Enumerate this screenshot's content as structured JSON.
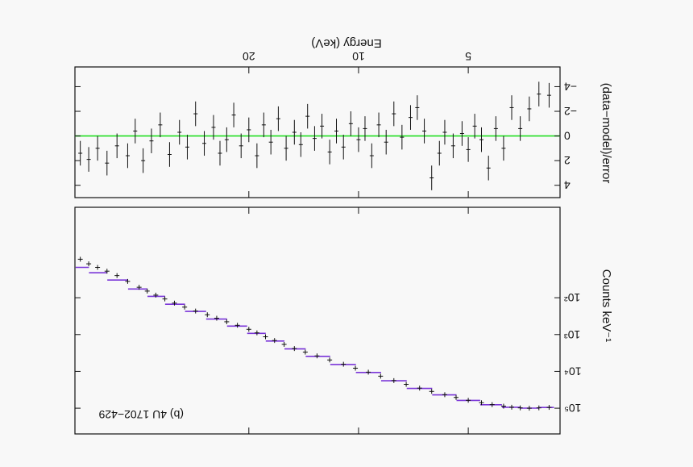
{
  "figure": {
    "orientation": "rotated 180 degrees (printed upside down)",
    "annotation": "(b) 4U 1702−429",
    "colors": {
      "data": "#111111",
      "model": "#7a35d8",
      "zero_line": "#22dd22",
      "background": "#f8f8f8"
    }
  },
  "chart_data": [
    {
      "type": "scatter",
      "panel": "spectrum",
      "xlabel": "Energy (keV)",
      "ylabel": "Counts keV⁻¹",
      "x_scale": "log",
      "y_scale": "log",
      "xlim": [
        2.8,
        60
      ],
      "ylim": [
        0.35,
        500000
      ],
      "x_ticks": [
        5,
        10,
        20
      ],
      "y_ticks": [
        {
          "v": 100,
          "label": "10²"
        },
        {
          "v": 1000,
          "label": "10³"
        },
        {
          "v": 10000,
          "label": "10⁴"
        },
        {
          "v": 100000,
          "label": "10⁵"
        }
      ],
      "legend": "none",
      "series": [
        {
          "role": "data",
          "points": [
            [
              3.0,
              95000
            ],
            [
              3.2,
              98000
            ],
            [
              3.4,
              100000
            ],
            [
              3.6,
              98000
            ],
            [
              3.8,
              94000
            ],
            [
              4.0,
              88000
            ],
            [
              4.3,
              80000
            ],
            [
              4.6,
              71000
            ],
            [
              5.0,
              61000
            ],
            [
              5.4,
              51000
            ],
            [
              5.8,
              43000
            ],
            [
              6.3,
              35000
            ],
            [
              6.8,
              28500
            ],
            [
              7.4,
              22500
            ],
            [
              8.0,
              17800
            ],
            [
              8.7,
              13500
            ],
            [
              9.4,
              10500
            ],
            [
              10.2,
              8200
            ],
            [
              11.0,
              6400
            ],
            [
              12.0,
              4900
            ],
            [
              13.0,
              3800
            ],
            [
              14.0,
              3000
            ],
            [
              15.0,
              2400
            ],
            [
              16.0,
              1850
            ],
            [
              17.0,
              1450
            ],
            [
              18.0,
              1150
            ],
            [
              19.0,
              900
            ],
            [
              20.0,
              720
            ],
            [
              21.5,
              560
            ],
            [
              23.0,
              450
            ],
            [
              24.5,
              360
            ],
            [
              26.0,
              290
            ],
            [
              28.0,
              230
            ],
            [
              30.0,
              180
            ],
            [
              32.0,
              140
            ],
            [
              34.0,
              108
            ],
            [
              36.0,
              85
            ],
            [
              38.0,
              66
            ],
            [
              40.0,
              52
            ],
            [
              43.0,
              36
            ],
            [
              46.0,
              25
            ],
            [
              49.0,
              19
            ],
            [
              52.0,
              15
            ],
            [
              55.0,
              12
            ],
            [
              58.0,
              9
            ]
          ]
        },
        {
          "role": "model",
          "points": [
            [
              3.0,
              95500
            ],
            [
              3.4,
              99500
            ],
            [
              3.8,
              94500
            ],
            [
              4.3,
              80500
            ],
            [
              5.0,
              61500
            ],
            [
              5.8,
              43500
            ],
            [
              6.8,
              29000
            ],
            [
              8.0,
              18000
            ],
            [
              9.4,
              10700
            ],
            [
              11.0,
              6500
            ],
            [
              13.0,
              3900
            ],
            [
              15.0,
              2450
            ],
            [
              17.0,
              1500
            ],
            [
              19.0,
              930
            ],
            [
              21.5,
              590
            ],
            [
              24.5,
              380
            ],
            [
              28.0,
              235
            ],
            [
              32.0,
              150
            ],
            [
              36.0,
              92
            ],
            [
              40.0,
              58
            ],
            [
              46.0,
              33
            ],
            [
              52.0,
              21
            ],
            [
              58.0,
              15
            ]
          ]
        }
      ]
    },
    {
      "type": "scatter",
      "panel": "residuals",
      "xlabel": "Energy (keV)",
      "ylabel": "(data−model)/error",
      "x_scale": "log",
      "xlim": [
        2.8,
        60
      ],
      "ylim": [
        -5.6,
        5.0
      ],
      "y_ticks": [
        {
          "v": 4,
          "label": "4"
        },
        {
          "v": 2,
          "label": "2"
        },
        {
          "v": 0,
          "label": "0"
        },
        {
          "v": -2,
          "label": "−2"
        },
        {
          "v": -4,
          "label": "−4"
        }
      ],
      "x_ticks": [
        {
          "v": 5,
          "label": "5"
        },
        {
          "v": 10,
          "label": "10"
        },
        {
          "v": 20,
          "label": "20"
        }
      ],
      "zero_line": 0,
      "legend": "none",
      "points": [
        [
          3.0,
          -3.3
        ],
        [
          3.2,
          -3.4
        ],
        [
          3.4,
          -2.2
        ],
        [
          3.6,
          -0.6
        ],
        [
          3.8,
          -2.3
        ],
        [
          4.0,
          1.0
        ],
        [
          4.2,
          -0.6
        ],
        [
          4.4,
          2.6
        ],
        [
          4.6,
          0.3
        ],
        [
          4.8,
          -0.8
        ],
        [
          5.0,
          1.1
        ],
        [
          5.2,
          -0.2
        ],
        [
          5.5,
          0.8
        ],
        [
          5.8,
          -0.3
        ],
        [
          6.0,
          1.4
        ],
        [
          6.3,
          3.4
        ],
        [
          6.6,
          -0.4
        ],
        [
          6.9,
          -2.3
        ],
        [
          7.2,
          -1.5
        ],
        [
          7.6,
          0.1
        ],
        [
          8.0,
          -1.8
        ],
        [
          8.4,
          0.5
        ],
        [
          8.8,
          -0.9
        ],
        [
          9.2,
          1.6
        ],
        [
          9.6,
          -0.6
        ],
        [
          10.0,
          0.3
        ],
        [
          10.5,
          -1.0
        ],
        [
          11.0,
          0.9
        ],
        [
          11.5,
          -0.4
        ],
        [
          12.0,
          1.3
        ],
        [
          12.6,
          -0.8
        ],
        [
          13.2,
          0.2
        ],
        [
          13.8,
          -1.6
        ],
        [
          14.4,
          0.7
        ],
        [
          15.0,
          -0.3
        ],
        [
          15.8,
          1.0
        ],
        [
          16.6,
          -1.4
        ],
        [
          17.4,
          0.5
        ],
        [
          18.2,
          -0.9
        ],
        [
          19.0,
          1.6
        ],
        [
          20.0,
          -0.5
        ],
        [
          21.0,
          0.8
        ],
        [
          22.0,
          -1.7
        ],
        [
          23.0,
          0.3
        ],
        [
          24.0,
          1.4
        ],
        [
          25.0,
          -0.7
        ],
        [
          26.5,
          0.6
        ],
        [
          28.0,
          -1.8
        ],
        [
          29.5,
          0.9
        ],
        [
          31.0,
          -0.3
        ],
        [
          33.0,
          1.5
        ],
        [
          35.0,
          -0.9
        ],
        [
          37.0,
          0.4
        ],
        [
          39.0,
          2.0
        ],
        [
          41.0,
          -0.4
        ],
        [
          43.0,
          1.6
        ],
        [
          46.0,
          0.8
        ],
        [
          49.0,
          2.2
        ],
        [
          52.0,
          1.0
        ],
        [
          55.0,
          1.9
        ],
        [
          58.0,
          1.4
        ]
      ]
    }
  ]
}
